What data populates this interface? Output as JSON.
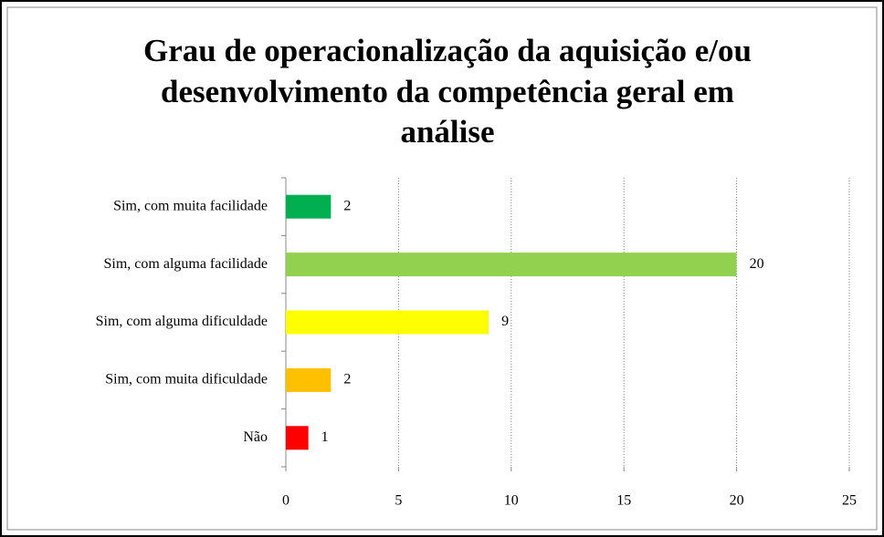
{
  "chart_data": {
    "type": "bar",
    "orientation": "horizontal",
    "title": [
      "Grau de operacionalização da aquisição e/ou",
      "desenvolvimento da competência geral em",
      "análise"
    ],
    "categories": [
      "Sim, com muita facilidade",
      "Sim, com alguma facilidade",
      "Sim, com alguma dificuldade",
      "Sim, com muita dificuldade",
      "Não"
    ],
    "values": [
      2,
      20,
      9,
      2,
      1
    ],
    "colors": [
      "#00b050",
      "#92d050",
      "#ffff00",
      "#ffc000",
      "#ff0000"
    ],
    "xlim": [
      0,
      25
    ],
    "xticks": [
      0,
      5,
      10,
      15,
      20,
      25
    ],
    "grid": true
  }
}
